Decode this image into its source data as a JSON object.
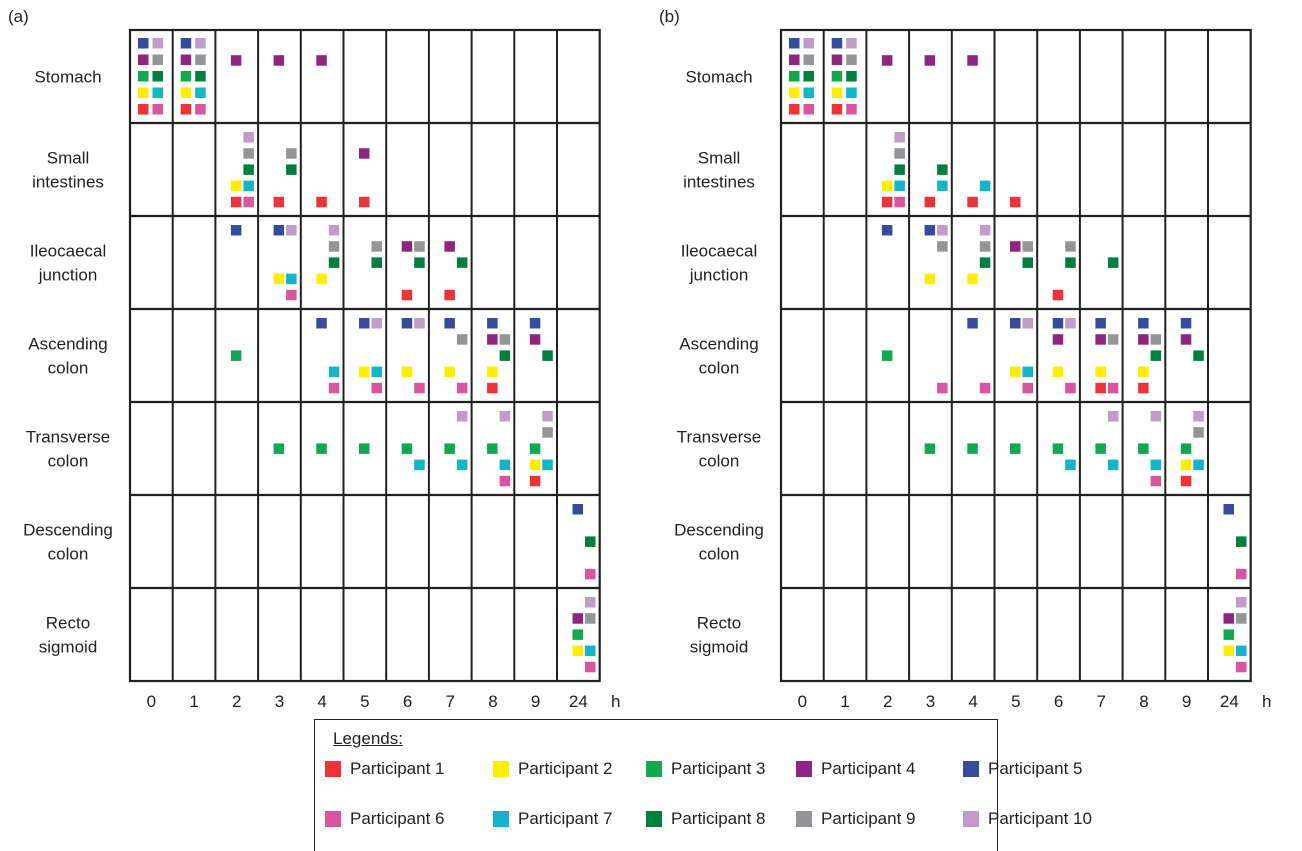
{
  "participants": [
    {
      "id": 1,
      "label": "Participant 1",
      "color": "#ee3338"
    },
    {
      "id": 2,
      "label": "Participant 2",
      "color": "#ffee00"
    },
    {
      "id": 3,
      "label": "Participant 3",
      "color": "#11a84f"
    },
    {
      "id": 4,
      "label": "Participant 4",
      "color": "#8e2681"
    },
    {
      "id": 5,
      "label": "Participant 5",
      "color": "#354c9e"
    },
    {
      "id": 6,
      "label": "Participant 6",
      "color": "#d9559f"
    },
    {
      "id": 7,
      "label": "Participant 7",
      "color": "#14b4cb"
    },
    {
      "id": 8,
      "label": "Participant 8",
      "color": "#007f3e"
    },
    {
      "id": 9,
      "label": "Participant 9",
      "color": "#939598"
    },
    {
      "id": 10,
      "label": "Participant 10",
      "color": "#c39bcb"
    }
  ],
  "legend": {
    "title": "Legends:"
  },
  "chart_data": [
    {
      "type": "heatmap",
      "panel_label": "(a)",
      "rows": [
        "Stomach",
        "Small intestines",
        "Ileocaecal junction",
        "Ascending colon",
        "Transverse colon",
        "Descending colon",
        "Recto sigmoid"
      ],
      "columns": [
        "0",
        "1",
        "2",
        "3",
        "4",
        "5",
        "6",
        "7",
        "8",
        "9",
        "24"
      ],
      "x_unit": "h",
      "locations": [
        [
          [
            1,
            2,
            3,
            4,
            5,
            6,
            7,
            8,
            9,
            10
          ],
          [
            1,
            2,
            3,
            4,
            5,
            6,
            7,
            8,
            9,
            10
          ],
          [
            4
          ],
          [
            4
          ],
          [
            4
          ],
          [],
          [],
          [],
          [],
          [],
          []
        ],
        [
          [],
          [],
          [
            1,
            2,
            6,
            7,
            8,
            9,
            10
          ],
          [
            1,
            8,
            9
          ],
          [
            1
          ],
          [
            1,
            4
          ],
          [],
          [],
          [],
          [],
          []
        ],
        [
          [],
          [],
          [
            5
          ],
          [
            2,
            5,
            6,
            7,
            10
          ],
          [
            2,
            8,
            9,
            10
          ],
          [
            8,
            9
          ],
          [
            1,
            4,
            8,
            9
          ],
          [
            1,
            4,
            8
          ],
          [],
          [],
          []
        ],
        [
          [],
          [],
          [
            3
          ],
          [],
          [
            5,
            6,
            7
          ],
          [
            2,
            5,
            6,
            7,
            10
          ],
          [
            2,
            5,
            6,
            10
          ],
          [
            2,
            5,
            6,
            9
          ],
          [
            1,
            2,
            4,
            5,
            8,
            9
          ],
          [
            4,
            5,
            8
          ],
          []
        ],
        [
          [],
          [],
          [],
          [
            3
          ],
          [
            3
          ],
          [
            3
          ],
          [
            3,
            7
          ],
          [
            3,
            7,
            10
          ],
          [
            3,
            6,
            7,
            10
          ],
          [
            1,
            2,
            3,
            7,
            9,
            10
          ],
          []
        ],
        [
          [],
          [],
          [],
          [],
          [],
          [],
          [],
          [],
          [],
          [],
          [
            5,
            6,
            8
          ]
        ],
        [
          [],
          [],
          [],
          [],
          [],
          [],
          [],
          [],
          [],
          [],
          [
            2,
            3,
            4,
            6,
            7,
            9,
            10
          ]
        ]
      ]
    },
    {
      "type": "heatmap",
      "panel_label": "(b)",
      "rows": [
        "Stomach",
        "Small intestines",
        "Ileocaecal junction",
        "Ascending colon",
        "Transverse colon",
        "Descending colon",
        "Recto sigmoid"
      ],
      "columns": [
        "0",
        "1",
        "2",
        "3",
        "4",
        "5",
        "6",
        "7",
        "8",
        "9",
        "24"
      ],
      "x_unit": "h",
      "locations": [
        [
          [
            1,
            2,
            3,
            4,
            5,
            6,
            7,
            8,
            9,
            10
          ],
          [
            1,
            2,
            3,
            4,
            5,
            6,
            7,
            8,
            9,
            10
          ],
          [
            4
          ],
          [
            4
          ],
          [
            4
          ],
          [],
          [],
          [],
          [],
          [],
          []
        ],
        [
          [],
          [],
          [
            1,
            2,
            6,
            7,
            8,
            9,
            10
          ],
          [
            1,
            7,
            8
          ],
          [
            1,
            7
          ],
          [
            1
          ],
          [],
          [],
          [],
          [],
          []
        ],
        [
          [],
          [],
          [
            5
          ],
          [
            2,
            5,
            9,
            10
          ],
          [
            2,
            8,
            9,
            10
          ],
          [
            4,
            8,
            9
          ],
          [
            1,
            8,
            9
          ],
          [
            8
          ],
          [],
          [],
          []
        ],
        [
          [],
          [],
          [
            3
          ],
          [
            6
          ],
          [
            5,
            6
          ],
          [
            2,
            5,
            6,
            7,
            10
          ],
          [
            2,
            4,
            5,
            6,
            10
          ],
          [
            1,
            2,
            4,
            5,
            6,
            9
          ],
          [
            1,
            2,
            4,
            5,
            8,
            9
          ],
          [
            4,
            5,
            8
          ],
          []
        ],
        [
          [],
          [],
          [],
          [
            3
          ],
          [
            3
          ],
          [
            3
          ],
          [
            3,
            7
          ],
          [
            3,
            7,
            10
          ],
          [
            3,
            6,
            7,
            10
          ],
          [
            1,
            2,
            3,
            7,
            9,
            10
          ],
          []
        ],
        [
          [],
          [],
          [],
          [],
          [],
          [],
          [],
          [],
          [],
          [],
          [
            5,
            6,
            8
          ]
        ],
        [
          [],
          [],
          [],
          [],
          [],
          [],
          [],
          [],
          [],
          [],
          [
            2,
            3,
            4,
            6,
            7,
            9,
            10
          ]
        ]
      ]
    }
  ]
}
